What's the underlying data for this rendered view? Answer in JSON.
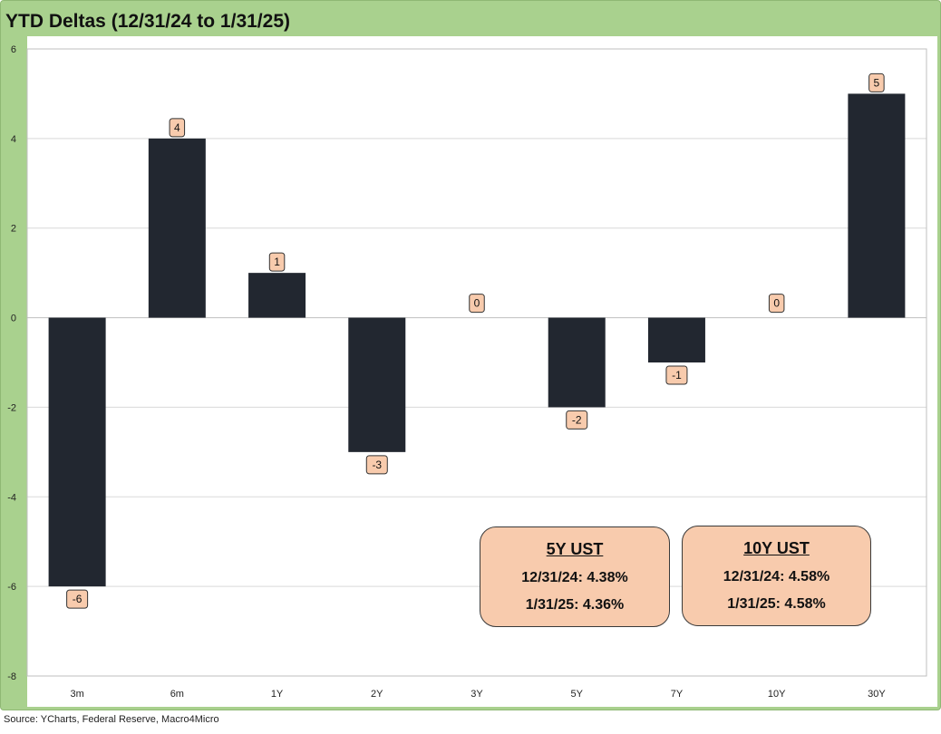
{
  "title": "YTD Deltas (12/31/24 to 1/31/25)",
  "source": "Source: YCharts, Federal Reserve, Macro4Micro",
  "colors": {
    "frame": "#a9d18e",
    "bar": "#222730",
    "label_fill": "#f8cbad",
    "box_fill": "#f8cbad"
  },
  "chart_data": {
    "type": "bar",
    "categories": [
      "3m",
      "6m",
      "1Y",
      "2Y",
      "3Y",
      "5Y",
      "7Y",
      "10Y",
      "30Y"
    ],
    "values": [
      -6,
      4,
      1,
      -3,
      0,
      -2,
      -1,
      0,
      5
    ],
    "data_labels": [
      "-6",
      "4",
      "1",
      "-3",
      "0",
      "-2",
      "-1",
      "0",
      "5"
    ],
    "ylim": [
      -8,
      6
    ],
    "yticks": [
      6,
      4,
      2,
      0,
      -2,
      -4,
      -6,
      -8
    ],
    "ytick_labels": [
      "6",
      "4",
      "2",
      "0",
      "-2",
      "-4",
      "-6",
      "-8"
    ],
    "grid": true,
    "legend": "none"
  },
  "annotations": {
    "box_5y": {
      "title": "5Y UST",
      "line1": "12/31/24: 4.38%",
      "line2": "1/31/25: 4.36%"
    },
    "box_10y": {
      "title": "10Y UST",
      "line1": "12/31/24: 4.58%",
      "line2": "1/31/25: 4.58%"
    }
  }
}
